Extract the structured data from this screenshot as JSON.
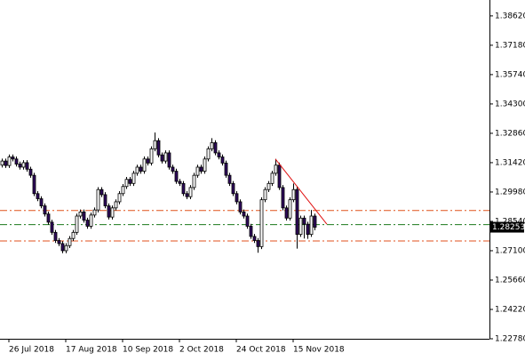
{
  "chart_data": {
    "type": "candlestick",
    "categories": [
      null,
      null,
      "26 Jul 2018",
      null,
      null,
      null,
      null,
      null,
      null,
      null,
      null,
      null,
      null,
      null,
      null,
      null,
      null,
      null,
      "17 Aug 2018",
      null,
      null,
      null,
      null,
      null,
      null,
      null,
      null,
      null,
      null,
      null,
      null,
      null,
      null,
      null,
      "10 Sep 2018",
      null,
      null,
      null,
      null,
      null,
      null,
      null,
      null,
      null,
      null,
      null,
      null,
      null,
      null,
      null,
      "2 Oct 2018",
      null,
      null,
      null,
      null,
      null,
      null,
      null,
      null,
      null,
      null,
      null,
      null,
      null,
      null,
      null,
      "24 Oct 2018",
      null,
      null,
      null,
      null,
      null,
      null,
      null,
      null,
      null,
      null,
      null,
      null,
      null,
      null,
      null,
      "15 Nov 2018",
      null,
      null,
      null,
      null,
      null,
      null
    ],
    "open": [
      1.313,
      1.315,
      1.3128,
      1.317,
      1.316,
      1.3135,
      1.312,
      1.3142,
      1.311,
      1.308,
      1.299,
      1.2965,
      1.293,
      1.289,
      1.285,
      1.28,
      1.276,
      1.2745,
      1.271,
      1.2735,
      1.277,
      1.28,
      1.288,
      1.29,
      1.286,
      1.283,
      1.2885,
      1.291,
      1.301,
      1.2985,
      1.293,
      1.2875,
      1.292,
      1.295,
      1.299,
      1.3025,
      1.306,
      1.304,
      1.309,
      1.312,
      1.31,
      1.316,
      1.314,
      1.321,
      1.325,
      1.318,
      1.315,
      1.319,
      1.312,
      1.31,
      1.305,
      1.304,
      1.299,
      1.2975,
      1.302,
      1.308,
      1.312,
      1.31,
      1.316,
      1.321,
      1.324,
      1.319,
      1.317,
      1.314,
      1.308,
      1.304,
      1.299,
      1.295,
      1.29,
      1.288,
      1.283,
      1.278,
      1.276,
      1.273,
      1.296,
      1.301,
      1.304,
      1.309,
      1.313,
      1.302,
      1.292,
      1.287,
      1.296,
      1.301,
      1.279,
      1.287,
      1.284,
      1.279,
      1.288
    ],
    "high": [
      1.3162,
      1.3162,
      1.3182,
      1.3182,
      1.3172,
      1.3147,
      1.3154,
      1.3154,
      1.3122,
      1.3092,
      1.3002,
      1.2977,
      1.2942,
      1.2902,
      1.2862,
      1.2812,
      1.2772,
      1.2757,
      1.2747,
      1.2782,
      1.2812,
      1.2892,
      1.2912,
      1.2912,
      1.2872,
      1.2897,
      1.2922,
      1.3022,
      1.3022,
      1.2997,
      1.2942,
      1.2932,
      1.2962,
      1.3002,
      1.3037,
      1.3072,
      1.3072,
      1.3102,
      1.3132,
      1.3132,
      1.3172,
      1.3172,
      1.3222,
      1.329,
      1.3262,
      1.3192,
      1.3202,
      1.3202,
      1.3132,
      1.3112,
      1.3062,
      1.3052,
      1.3002,
      1.3032,
      1.3092,
      1.3132,
      1.3132,
      1.3172,
      1.3222,
      1.3262,
      1.3252,
      1.3202,
      1.3182,
      1.3152,
      1.3092,
      1.3052,
      1.3002,
      1.2962,
      1.2912,
      1.2892,
      1.2842,
      1.2792,
      1.2772,
      1.2972,
      1.3022,
      1.3052,
      1.3102,
      1.316,
      1.3142,
      1.3032,
      1.2932,
      1.2972,
      1.304,
      1.3022,
      1.2882,
      1.2882,
      1.2852,
      1.291,
      1.2892
    ],
    "low": [
      1.3118,
      1.3116,
      1.3116,
      1.3148,
      1.3123,
      1.3108,
      1.3108,
      1.3098,
      1.3068,
      1.2978,
      1.2953,
      1.2918,
      1.2878,
      1.2838,
      1.2788,
      1.2748,
      1.2733,
      1.2698,
      1.2698,
      1.2723,
      1.2758,
      1.2788,
      1.2868,
      1.2848,
      1.2818,
      1.2818,
      1.2873,
      1.2898,
      1.2973,
      1.2918,
      1.2863,
      1.2863,
      1.2908,
      1.2938,
      1.2978,
      1.3013,
      1.3028,
      1.3028,
      1.3078,
      1.3088,
      1.3088,
      1.3128,
      1.3128,
      1.3198,
      1.3168,
      1.3138,
      1.3138,
      1.3108,
      1.3088,
      1.3038,
      1.3028,
      1.2978,
      1.2963,
      1.2963,
      1.3008,
      1.3068,
      1.3088,
      1.3088,
      1.3148,
      1.3198,
      1.3178,
      1.3158,
      1.3128,
      1.3068,
      1.3028,
      1.2978,
      1.2938,
      1.2888,
      1.2868,
      1.2818,
      1.2768,
      1.2748,
      1.27,
      1.2718,
      1.2948,
      1.2998,
      1.3028,
      1.3078,
      1.3008,
      1.2908,
      1.2858,
      1.2858,
      1.2948,
      1.272,
      1.2778,
      1.277,
      1.2768,
      1.2778,
      1.281
    ],
    "close": [
      1.315,
      1.3128,
      1.317,
      1.316,
      1.3135,
      1.312,
      1.3142,
      1.311,
      1.308,
      1.299,
      1.2965,
      1.293,
      1.289,
      1.285,
      1.28,
      1.276,
      1.2745,
      1.271,
      1.2735,
      1.277,
      1.28,
      1.288,
      1.29,
      1.286,
      1.283,
      1.2885,
      1.291,
      1.301,
      1.2985,
      1.293,
      1.2875,
      1.292,
      1.295,
      1.299,
      1.3025,
      1.306,
      1.304,
      1.309,
      1.312,
      1.31,
      1.316,
      1.314,
      1.321,
      1.325,
      1.318,
      1.315,
      1.319,
      1.312,
      1.31,
      1.305,
      1.304,
      1.299,
      1.2975,
      1.302,
      1.308,
      1.312,
      1.31,
      1.316,
      1.321,
      1.324,
      1.319,
      1.317,
      1.314,
      1.308,
      1.304,
      1.299,
      1.295,
      1.29,
      1.288,
      1.283,
      1.278,
      1.276,
      1.273,
      1.296,
      1.301,
      1.304,
      1.309,
      1.313,
      1.302,
      1.292,
      1.287,
      1.296,
      1.301,
      1.279,
      1.287,
      1.284,
      1.279,
      1.288,
      1.28253
    ],
    "up_color": "#ffffff",
    "down_color": "#2e0b5c",
    "wick_color": "#000000",
    "xlim": [
      -0.5,
      137.25
    ],
    "ylim": [
      1.2278,
      1.394
    ],
    "yticks": [
      {
        "value": 1.3862,
        "label": "1.38620"
      },
      {
        "value": 1.3718,
        "label": "1.37180"
      },
      {
        "value": 1.3574,
        "label": "1.35740"
      },
      {
        "value": 1.343,
        "label": "1.34300"
      },
      {
        "value": 1.3286,
        "label": "1.32860"
      },
      {
        "value": 1.3142,
        "label": "1.31420"
      },
      {
        "value": 1.2998,
        "label": "1.29980"
      },
      {
        "value": 1.2854,
        "label": "1.28540"
      },
      {
        "value": 1.271,
        "label": "1.27100"
      },
      {
        "value": 1.2566,
        "label": "1.25660"
      },
      {
        "value": 1.2422,
        "label": "1.24220"
      },
      {
        "value": 1.2278,
        "label": "1.22780"
      }
    ],
    "hlines": [
      {
        "value": 1.2907,
        "color": "#e0521c"
      },
      {
        "value": 1.2838,
        "color": "#1d7a1d"
      },
      {
        "value": 1.2758,
        "color": "#e0521c"
      }
    ],
    "trendline": {
      "x": [
        77,
        91.5
      ],
      "y": [
        1.316,
        1.284
      ],
      "color": "#e01010"
    }
  }
}
